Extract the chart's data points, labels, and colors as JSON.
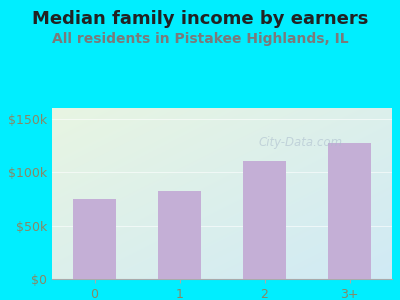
{
  "title": "Median family income by earners",
  "subtitle": "All residents in Pistakee Highlands, IL",
  "categories": [
    "0",
    "1",
    "2",
    "3+"
  ],
  "values": [
    75000,
    82000,
    110000,
    127000
  ],
  "bar_color": "#c4afd6",
  "title_fontsize": 13,
  "subtitle_fontsize": 10,
  "ylabel_ticks": [
    0,
    50000,
    100000,
    150000
  ],
  "ylabel_labels": [
    "$0",
    "$50k",
    "$100k",
    "$150k"
  ],
  "ylim": [
    0,
    160000
  ],
  "background_outer": "#00eeff",
  "bg_top_left": "#e8f5e2",
  "bg_bottom_right": "#d0eaf5",
  "watermark": "City-Data.com",
  "title_color": "#222222",
  "subtitle_color": "#7a7a7a",
  "tick_color": "#888866",
  "tick_fontsize": 9,
  "watermark_color": "#aabbcc",
  "watermark_alpha": 0.55
}
